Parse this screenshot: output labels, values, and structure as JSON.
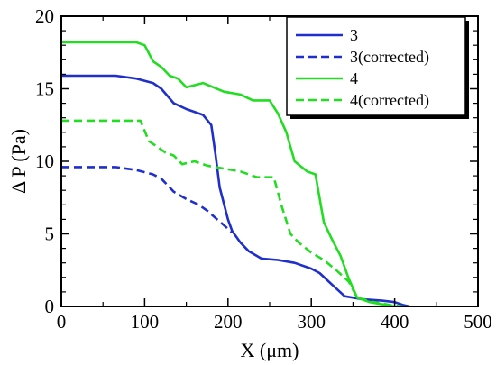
{
  "chart_data": {
    "type": "line",
    "title": "",
    "xlabel": "X (μm)",
    "ylabel": "Δ P (Pa)",
    "xlim": [
      0,
      500
    ],
    "ylim": [
      0,
      20
    ],
    "xticks": [
      0,
      100,
      200,
      300,
      400,
      500
    ],
    "yticks": [
      0,
      5,
      10,
      15,
      20
    ],
    "grid": false,
    "legend_position": "top-right",
    "series": [
      {
        "name": "3",
        "color": "#1f2fcc",
        "dash": "solid",
        "points": [
          [
            0,
            15.9
          ],
          [
            65,
            15.9
          ],
          [
            90,
            15.7
          ],
          [
            110,
            15.4
          ],
          [
            120,
            15.0
          ],
          [
            135,
            14.0
          ],
          [
            150,
            13.6
          ],
          [
            170,
            13.2
          ],
          [
            180,
            12.5
          ],
          [
            185,
            10.5
          ],
          [
            190,
            8.2
          ],
          [
            200,
            6.0
          ],
          [
            205,
            5.2
          ],
          [
            215,
            4.4
          ],
          [
            225,
            3.8
          ],
          [
            240,
            3.3
          ],
          [
            260,
            3.2
          ],
          [
            280,
            3.0
          ],
          [
            300,
            2.6
          ],
          [
            310,
            2.3
          ],
          [
            325,
            1.5
          ],
          [
            340,
            0.7
          ],
          [
            360,
            0.5
          ],
          [
            385,
            0.4
          ],
          [
            400,
            0.3
          ],
          [
            410,
            0.1
          ],
          [
            418,
            0.0
          ]
        ]
      },
      {
        "name": "3(corrected)",
        "color": "#1f2fcc",
        "dash": "dashed",
        "points": [
          [
            0,
            9.6
          ],
          [
            65,
            9.6
          ],
          [
            90,
            9.4
          ],
          [
            110,
            9.1
          ],
          [
            120,
            8.8
          ],
          [
            135,
            7.9
          ],
          [
            150,
            7.4
          ],
          [
            165,
            7.0
          ],
          [
            175,
            6.6
          ],
          [
            185,
            6.1
          ],
          [
            195,
            5.6
          ],
          [
            205,
            5.1
          ]
        ]
      },
      {
        "name": "4",
        "color": "#22dd22",
        "dash": "solid",
        "points": [
          [
            0,
            18.2
          ],
          [
            90,
            18.2
          ],
          [
            100,
            18.0
          ],
          [
            110,
            16.9
          ],
          [
            120,
            16.5
          ],
          [
            130,
            15.9
          ],
          [
            140,
            15.7
          ],
          [
            150,
            15.1
          ],
          [
            170,
            15.4
          ],
          [
            195,
            14.8
          ],
          [
            215,
            14.6
          ],
          [
            230,
            14.2
          ],
          [
            250,
            14.2
          ],
          [
            260,
            13.3
          ],
          [
            270,
            12.0
          ],
          [
            280,
            10.0
          ],
          [
            295,
            9.3
          ],
          [
            305,
            9.1
          ],
          [
            315,
            5.8
          ],
          [
            325,
            4.6
          ],
          [
            335,
            3.5
          ],
          [
            345,
            1.9
          ],
          [
            355,
            0.6
          ],
          [
            370,
            0.3
          ],
          [
            380,
            0.2
          ],
          [
            400,
            0.0
          ]
        ]
      },
      {
        "name": "4(corrected)",
        "color": "#22dd22",
        "dash": "dashed",
        "points": [
          [
            0,
            12.8
          ],
          [
            95,
            12.8
          ],
          [
            105,
            11.4
          ],
          [
            115,
            11.0
          ],
          [
            125,
            10.6
          ],
          [
            135,
            10.4
          ],
          [
            145,
            9.8
          ],
          [
            160,
            10.0
          ],
          [
            175,
            9.7
          ],
          [
            195,
            9.5
          ],
          [
            215,
            9.3
          ],
          [
            235,
            8.9
          ],
          [
            255,
            8.9
          ],
          [
            265,
            6.8
          ],
          [
            275,
            5.0
          ],
          [
            285,
            4.4
          ],
          [
            300,
            3.7
          ],
          [
            315,
            3.2
          ],
          [
            330,
            2.5
          ],
          [
            345,
            1.7
          ],
          [
            355,
            0.6
          ],
          [
            375,
            0.3
          ],
          [
            395,
            0.1
          ],
          [
            410,
            0.0
          ]
        ]
      }
    ]
  }
}
